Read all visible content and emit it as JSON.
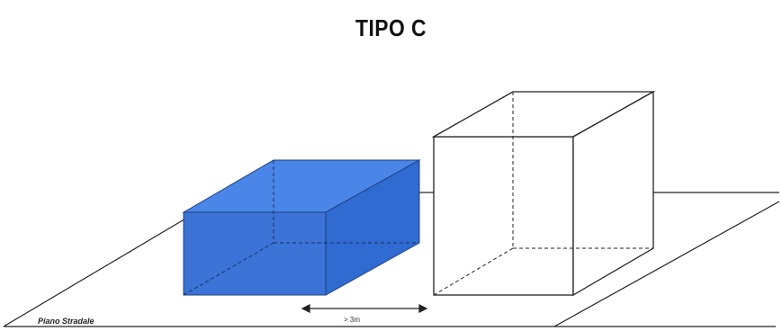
{
  "title": "TIPO C",
  "plane_label": "Piano Stradale",
  "dimension_label": "> 3m",
  "colors": {
    "box_fill": "#3b73d6",
    "box_edge": "#1f3f80",
    "line": "#222222",
    "background": "#ffffff"
  }
}
